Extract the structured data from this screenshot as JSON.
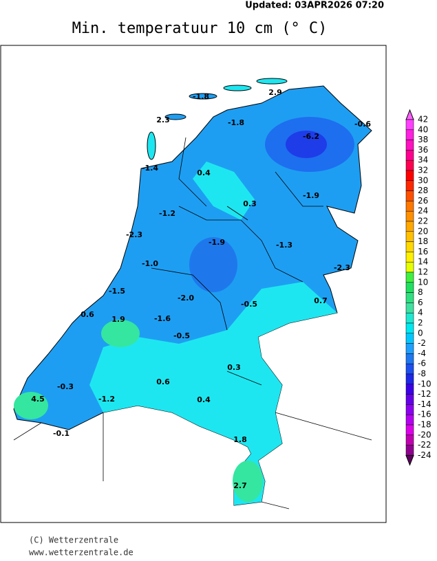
{
  "header": {
    "updated": "Updated:  03APR2026 07:20",
    "title": "Min. temperatuur 10 cm (° C)"
  },
  "stations": [
    "-1.8",
    "2.9",
    "2.3",
    "-1.8",
    "-0.6",
    "-6.2",
    "-1.4",
    "0.4",
    "0.3",
    "-1.9",
    "-1.2",
    "-2.3",
    "-1.9",
    "-1.3",
    "-1.0",
    "-2.3",
    "-1.5",
    "-2.0",
    "-0.5",
    "0.7",
    "0.6",
    "1.9",
    "-1.6",
    "-0.5",
    "0.3",
    "0.6",
    "-0.3",
    "4.5",
    "-1.2",
    "0.4",
    "-0.1",
    "1.8",
    "2.7"
  ],
  "legend": {
    "ticks": [
      42,
      40,
      38,
      36,
      34,
      32,
      30,
      28,
      26,
      24,
      22,
      20,
      18,
      16,
      14,
      12,
      10,
      8,
      6,
      4,
      2,
      0,
      -2,
      -4,
      -6,
      -8,
      -10,
      -12,
      -14,
      -16,
      -18,
      -20,
      -22,
      -24
    ]
  },
  "footer": {
    "copyright": "(C) Wetterzentrale",
    "url": "www.wetterzentrale.de"
  }
}
